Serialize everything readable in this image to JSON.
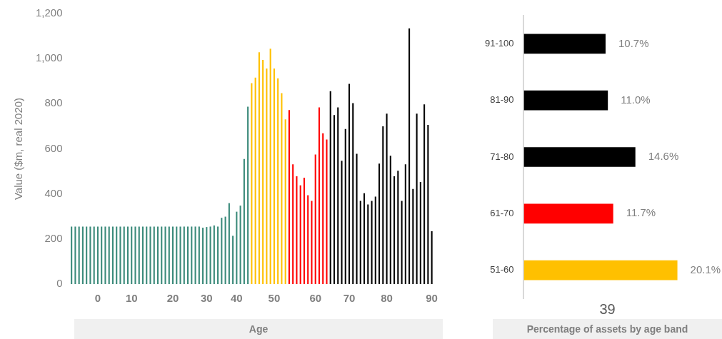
{
  "chart_data": [
    {
      "type": "bar",
      "ylabel": "Value ($m, real 2020)",
      "xlabel": "Age",
      "categories": [
        null,
        null,
        null,
        null,
        null,
        null,
        null,
        "0",
        null,
        null,
        null,
        null,
        null,
        null,
        null,
        null,
        "10",
        null,
        null,
        null,
        null,
        null,
        null,
        null,
        null,
        null,
        null,
        "20",
        null,
        null,
        null,
        null,
        null,
        null,
        null,
        null,
        "30",
        null,
        null,
        null,
        null,
        null,
        null,
        null,
        "40",
        null,
        null,
        null,
        null,
        null,
        null,
        null,
        null,
        null,
        "50",
        null,
        null,
        null,
        null,
        null,
        null,
        null,
        null,
        null,
        null,
        "60",
        null,
        null,
        null,
        null,
        null,
        null,
        null,
        null,
        "70",
        null,
        null,
        null,
        null,
        null,
        null,
        null,
        null,
        null,
        "80",
        null,
        null,
        null,
        null,
        null,
        null,
        null,
        null,
        null,
        null,
        null,
        "90"
      ],
      "values": [
        255,
        255,
        255,
        255,
        255,
        255,
        255,
        255,
        255,
        255,
        255,
        255,
        255,
        255,
        255,
        255,
        255,
        255,
        255,
        255,
        255,
        255,
        255,
        255,
        255,
        255,
        255,
        255,
        255,
        255,
        255,
        255,
        255,
        255,
        255,
        250,
        253,
        255,
        260,
        255,
        294,
        299,
        359,
        214,
        321,
        348,
        555,
        787,
        891,
        916,
        1028,
        994,
        956,
        1044,
        956,
        913,
        847,
        731,
        772,
        531,
        478,
        438,
        472,
        394,
        369,
        575,
        784,
        669,
        641,
        856,
        750,
        784,
        547,
        688,
        888,
        803,
        578,
        369,
        403,
        353,
        369,
        388,
        534,
        700,
        756,
        569,
        478,
        503,
        369,
        531,
        1134,
        422,
        756,
        453,
        797,
        706,
        234
      ],
      "colors": [
        "#3a8a7a",
        "#3a8a7a",
        "#3a8a7a",
        "#3a8a7a",
        "#3a8a7a",
        "#3a8a7a",
        "#3a8a7a",
        "#3a8a7a",
        "#3a8a7a",
        "#3a8a7a",
        "#3a8a7a",
        "#3a8a7a",
        "#3a8a7a",
        "#3a8a7a",
        "#3a8a7a",
        "#3a8a7a",
        "#3a8a7a",
        "#3a8a7a",
        "#3a8a7a",
        "#3a8a7a",
        "#3a8a7a",
        "#3a8a7a",
        "#3a8a7a",
        "#3a8a7a",
        "#3a8a7a",
        "#3a8a7a",
        "#3a8a7a",
        "#3a8a7a",
        "#3a8a7a",
        "#3a8a7a",
        "#3a8a7a",
        "#3a8a7a",
        "#3a8a7a",
        "#3a8a7a",
        "#3a8a7a",
        "#3a8a7a",
        "#3a8a7a",
        "#3a8a7a",
        "#3a8a7a",
        "#3a8a7a",
        "#3a8a7a",
        "#3a8a7a",
        "#3a8a7a",
        "#3a8a7a",
        "#3a8a7a",
        "#3a8a7a",
        "#3a8a7a",
        "#3a8a7a",
        "#ffc000",
        "#ffc000",
        "#ffc000",
        "#ffc000",
        "#ffc000",
        "#ffc000",
        "#ffc000",
        "#ffc000",
        "#ffc000",
        "#ffc000",
        "#ff0000",
        "#ff0000",
        "#ff0000",
        "#ff0000",
        "#ff0000",
        "#ff0000",
        "#ff0000",
        "#ff0000",
        "#ff0000",
        "#ff0000",
        "#ff0000",
        "#000000",
        "#000000",
        "#000000",
        "#000000",
        "#000000",
        "#000000",
        "#000000",
        "#000000",
        "#000000",
        "#000000",
        "#000000",
        "#000000",
        "#000000",
        "#000000",
        "#000000",
        "#000000",
        "#000000",
        "#000000",
        "#000000",
        "#000000",
        "#000000",
        "#000000",
        "#000000",
        "#000000",
        "#000000",
        "#000000",
        "#000000",
        "#000000"
      ],
      "ylim": [
        0,
        1200
      ],
      "yticks": [
        0,
        200,
        400,
        600,
        800,
        {
          "value": 1000,
          "label": "1,000"
        },
        {
          "value": 1200,
          "label": "1,200"
        }
      ]
    },
    {
      "type": "bar",
      "orientation": "horizontal",
      "xlabel": "Percentage of assets by age band",
      "annotations": [
        "39"
      ],
      "categories": [
        "91-100",
        "81-90",
        "71-80",
        "61-70",
        "51-60"
      ],
      "values": [
        10.7,
        11.0,
        14.6,
        11.7,
        20.1
      ],
      "colors": [
        "#000000",
        "#000000",
        "#000000",
        "#ff0000",
        "#ffc000"
      ],
      "value_labels": [
        "10.7%",
        "11.0%",
        "14.6%",
        "11.7%",
        "20.1%"
      ],
      "tick_labels": "y"
    }
  ]
}
